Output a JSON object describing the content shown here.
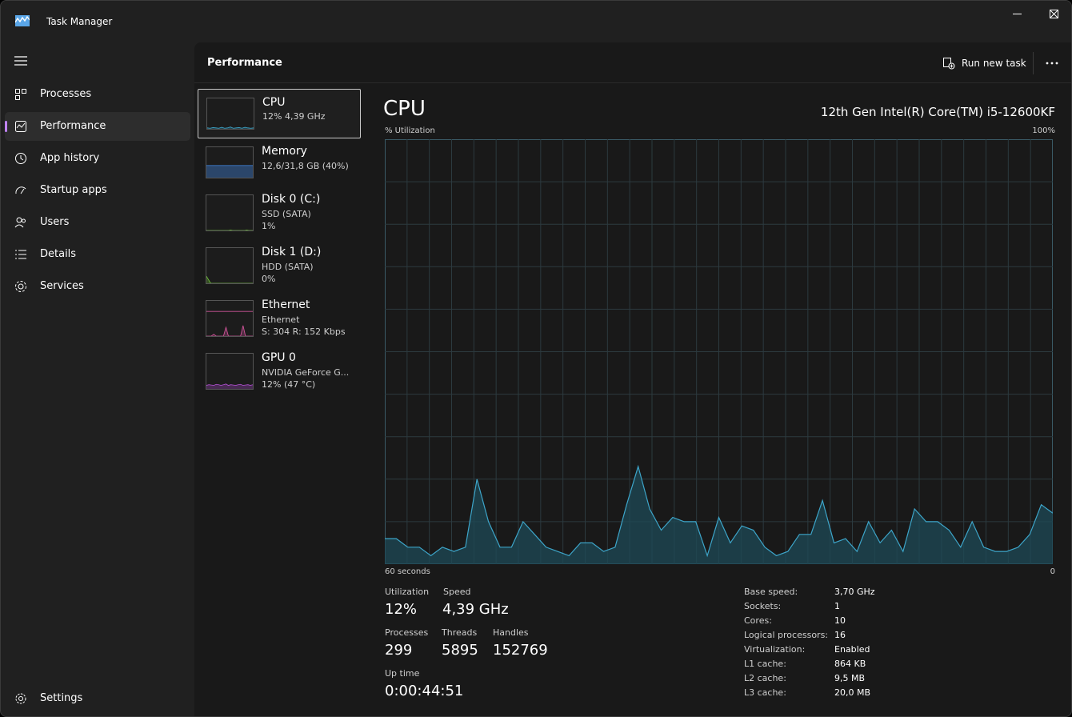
{
  "window": {
    "title": "Task Manager"
  },
  "nav": {
    "items": [
      {
        "label": "Processes",
        "icon": "processes-icon"
      },
      {
        "label": "Performance",
        "icon": "performance-icon"
      },
      {
        "label": "App history",
        "icon": "history-icon"
      },
      {
        "label": "Startup apps",
        "icon": "startup-icon"
      },
      {
        "label": "Users",
        "icon": "users-icon"
      },
      {
        "label": "Details",
        "icon": "details-icon"
      },
      {
        "label": "Services",
        "icon": "services-icon"
      }
    ],
    "settings": "Settings",
    "active_index": 1
  },
  "header": {
    "title": "Performance",
    "run_new_task": "Run new task"
  },
  "resources": [
    {
      "name": "CPU",
      "line1": "12%  4,39 GHz",
      "line2": "",
      "color": "#3da5c9"
    },
    {
      "name": "Memory",
      "line1": "12,6/31,8 GB (40%)",
      "line2": "",
      "color": "#3d7ac9"
    },
    {
      "name": "Disk 0 (C:)",
      "line1": "SSD (SATA)",
      "line2": "1%",
      "color": "#6fbf3a"
    },
    {
      "name": "Disk 1 (D:)",
      "line1": "HDD (SATA)",
      "line2": "0%",
      "color": "#6fbf3a"
    },
    {
      "name": "Ethernet",
      "line1": "Ethernet",
      "line2": "S: 304  R: 152 Kbps",
      "color": "#d0549a"
    },
    {
      "name": "GPU 0",
      "line1": "NVIDIA GeForce G...",
      "line2": "12%  (47 °C)",
      "color": "#b04fd0"
    }
  ],
  "detail": {
    "title": "CPU",
    "model": "12th Gen Intel(R) Core(TM) i5-12600KF",
    "y_label": "% Utilization",
    "y_max": "100%",
    "x_left": "60 seconds",
    "x_right": "0",
    "stats": {
      "utilization_label": "Utilization",
      "utilization": "12%",
      "speed_label": "Speed",
      "speed": "4,39 GHz",
      "processes_label": "Processes",
      "processes": "299",
      "threads_label": "Threads",
      "threads": "5895",
      "handles_label": "Handles",
      "handles": "152769",
      "uptime_label": "Up time",
      "uptime": "0:00:44:51"
    },
    "specs": [
      {
        "k": "Base speed:",
        "v": "3,70 GHz"
      },
      {
        "k": "Sockets:",
        "v": "1"
      },
      {
        "k": "Cores:",
        "v": "10"
      },
      {
        "k": "Logical processors:",
        "v": "16"
      },
      {
        "k": "Virtualization:",
        "v": "Enabled"
      },
      {
        "k": "L1 cache:",
        "v": "864 KB"
      },
      {
        "k": "L2 cache:",
        "v": "9,5 MB"
      },
      {
        "k": "L3 cache:",
        "v": "20,0 MB"
      }
    ]
  },
  "chart_data": {
    "type": "area",
    "ylim": [
      0,
      100
    ],
    "xlim": [
      60,
      0
    ],
    "grid": true,
    "values": [
      6,
      6,
      4,
      4,
      2,
      4,
      3,
      4,
      20,
      10,
      4,
      4,
      10,
      7,
      4,
      3,
      2,
      5,
      5,
      3,
      4,
      14,
      23,
      13,
      8,
      11,
      10,
      10,
      2,
      11,
      5,
      9,
      8,
      4,
      2,
      3,
      7,
      7,
      15,
      5,
      6,
      3,
      10,
      5,
      8,
      3,
      13,
      10,
      10,
      8,
      4,
      10,
      4,
      3,
      3,
      4,
      7,
      14,
      12
    ]
  },
  "thumb_data": {
    "cpu": [
      3,
      2,
      4,
      3,
      2,
      5,
      2,
      3,
      6,
      2,
      3,
      4,
      2,
      5,
      3,
      2,
      3
    ],
    "memory": [
      40,
      40,
      40,
      40,
      40,
      40,
      40,
      40,
      40,
      40
    ],
    "disk0": [
      0,
      0,
      0,
      0,
      0,
      0,
      0,
      0,
      0,
      0,
      0,
      0,
      1,
      0,
      0,
      0,
      0,
      0,
      0,
      0,
      1,
      0,
      0,
      0
    ],
    "disk1": [
      20,
      0,
      0,
      0,
      0,
      0,
      0,
      0,
      0,
      0,
      0,
      0
    ],
    "ethernet_top": [
      70,
      70,
      70,
      70,
      70,
      70,
      70,
      70,
      70,
      70
    ],
    "ethernet_spikes": [
      0,
      0,
      0,
      5,
      0,
      0,
      0,
      0,
      25,
      0,
      0,
      0,
      0,
      0,
      0,
      30,
      0,
      0,
      0,
      0
    ],
    "gpu": [
      10,
      12,
      11,
      10,
      13,
      12,
      10,
      12,
      14,
      10,
      12,
      11,
      10,
      12,
      13,
      10,
      11,
      12,
      10,
      12
    ]
  }
}
